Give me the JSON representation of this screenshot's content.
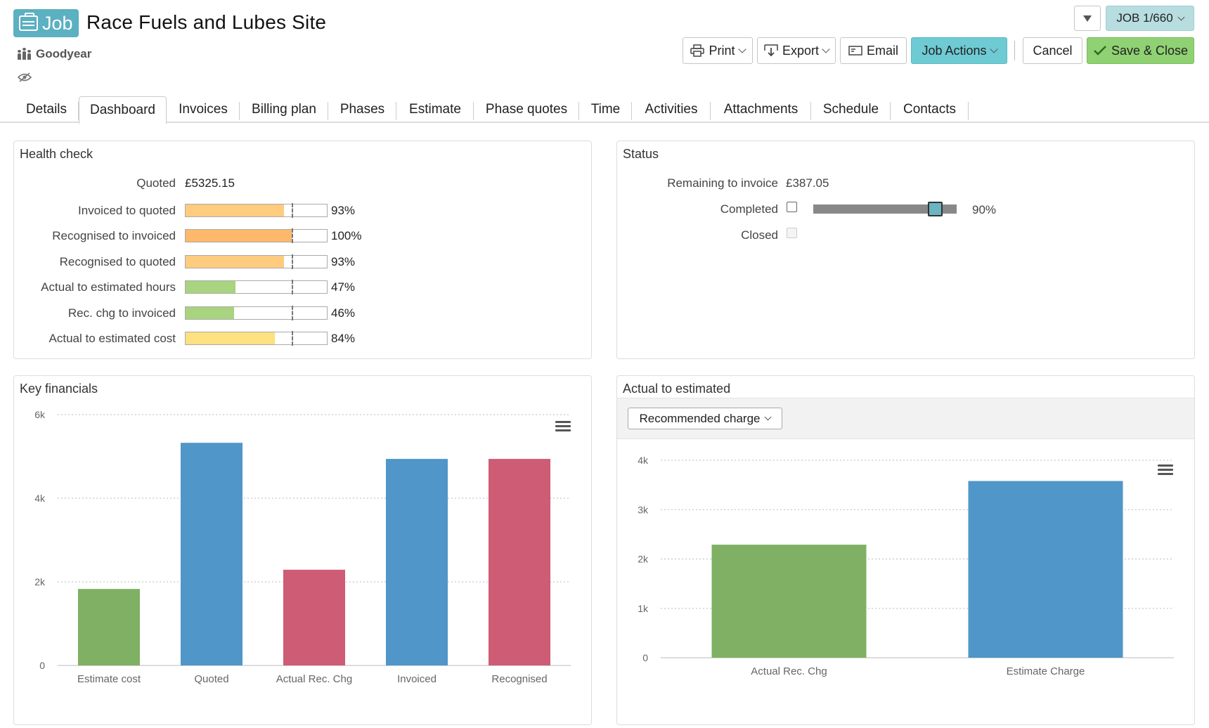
{
  "header": {
    "badge_label": "Job",
    "title": "Race Fuels and Lubes Site",
    "client": "Goodyear",
    "job_number": "JOB 1/660"
  },
  "toolbar": {
    "print_label": "Print",
    "export_label": "Export",
    "email_label": "Email",
    "job_actions_label": "Job Actions",
    "cancel_label": "Cancel",
    "save_close_label": "Save & Close"
  },
  "tabs": [
    {
      "label": "Details"
    },
    {
      "label": "Dashboard"
    },
    {
      "label": "Invoices"
    },
    {
      "label": "Billing plan"
    },
    {
      "label": "Phases"
    },
    {
      "label": "Estimate"
    },
    {
      "label": "Phase quotes"
    },
    {
      "label": "Time"
    },
    {
      "label": "Activities"
    },
    {
      "label": "Attachments"
    },
    {
      "label": "Schedule"
    },
    {
      "label": "Contacts"
    }
  ],
  "active_tab": "Dashboard",
  "health_check": {
    "title": "Health check",
    "quoted_label": "Quoted",
    "quoted_value": "£5325.15",
    "rows": [
      {
        "label": "Invoiced to quoted",
        "pct_text": "93%",
        "fill": 0.93,
        "color": "#fecb7f"
      },
      {
        "label": "Recognised to invoiced",
        "pct_text": "100%",
        "fill": 1.0,
        "color": "#fdb86b"
      },
      {
        "label": "Recognised to quoted",
        "pct_text": "93%",
        "fill": 0.93,
        "color": "#fecb7f"
      },
      {
        "label": "Actual to estimated hours",
        "pct_text": "47%",
        "fill": 0.47,
        "color": "#a8d37f"
      },
      {
        "label": "Rec. chg to invoiced",
        "pct_text": "46%",
        "fill": 0.46,
        "color": "#a8d37f"
      },
      {
        "label": "Actual to estimated cost",
        "pct_text": "84%",
        "fill": 0.84,
        "color": "#fde07f"
      }
    ]
  },
  "status": {
    "title": "Status",
    "remaining_label": "Remaining to invoice",
    "remaining_value": "£387.05",
    "completed_label": "Completed",
    "completed_pct_text": "90%",
    "completed_level": 0.9,
    "closed_label": "Closed"
  },
  "key_financials": {
    "title": "Key financials",
    "chart_data": {
      "type": "bar",
      "categories": [
        "Estimate cost",
        "Quoted",
        "Actual Rec. Chg",
        "Invoiced",
        "Recognised"
      ],
      "values": [
        1830,
        5325,
        2290,
        4940,
        4940
      ],
      "colors": [
        "#7fb064",
        "#5096c8",
        "#cd5c74",
        "#5096c8",
        "#cd5c74"
      ],
      "ylim": [
        0,
        6000
      ],
      "yticks": [
        "0",
        "2k",
        "4k",
        "6k"
      ],
      "grid": true
    }
  },
  "actual_to_estimated": {
    "title": "Actual to estimated",
    "selector_label": "Recommended charge",
    "chart_data": {
      "type": "bar",
      "categories": [
        "Actual Rec. Chg",
        "Estimate Charge"
      ],
      "values": [
        2290,
        3580
      ],
      "colors": [
        "#7fb064",
        "#5096c8"
      ],
      "ylim": [
        0,
        4000
      ],
      "yticks": [
        "0",
        "1k",
        "2k",
        "3k",
        "4k"
      ],
      "grid": true
    }
  }
}
